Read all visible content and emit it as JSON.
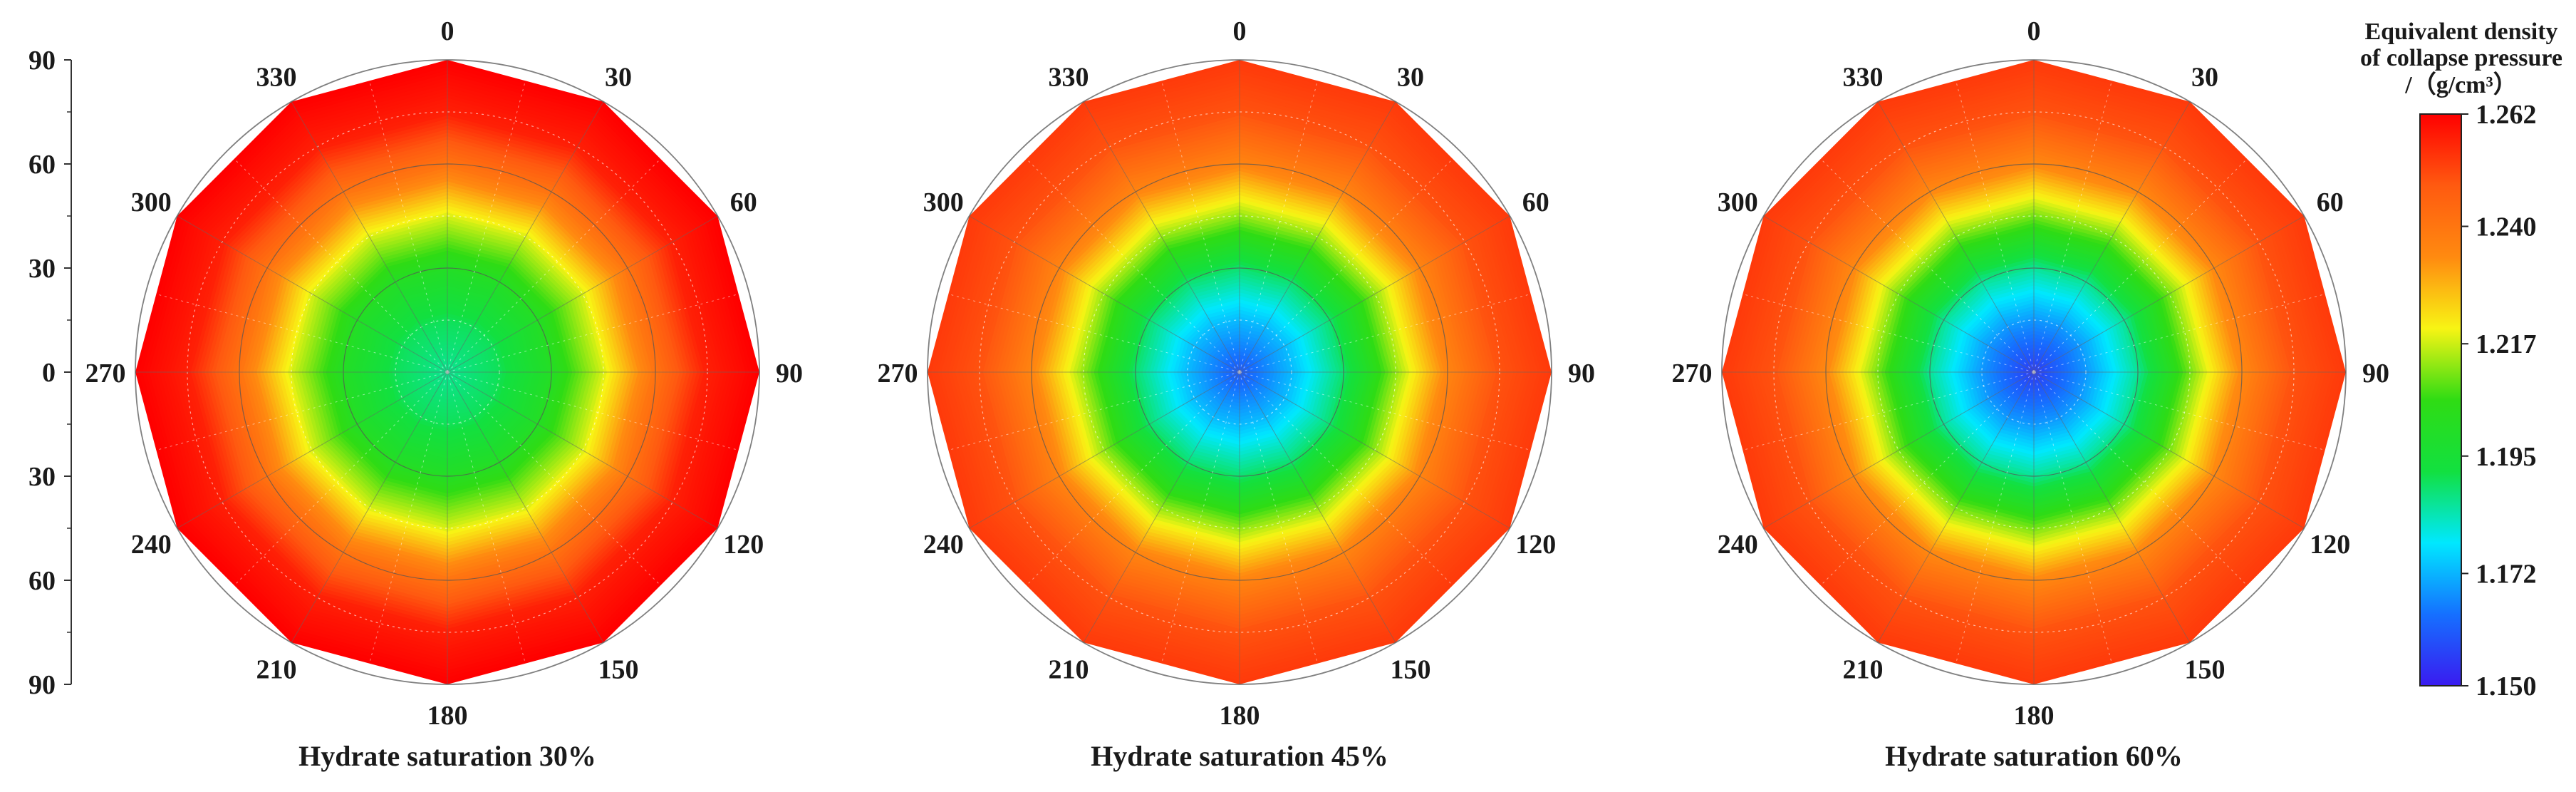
{
  "chart_data": [
    {
      "type": "heatmap",
      "subtype": "polar-contour",
      "title": "Hydrate saturation 30%",
      "angle_ticks": [
        "0",
        "30",
        "60",
        "90",
        "120",
        "150",
        "180",
        "210",
        "240",
        "270",
        "300",
        "330"
      ],
      "radial_axis_ticks": [
        "90",
        "60",
        "30",
        "0",
        "30",
        "60",
        "90"
      ],
      "angle_step_deg": 30,
      "rings": [
        30,
        60,
        90
      ],
      "value_range": [
        1.186,
        1.262
      ],
      "radial_profile": [
        {
          "r": 0,
          "v": 1.186
        },
        {
          "r": 15,
          "v": 1.19
        },
        {
          "r": 30,
          "v": 1.2
        },
        {
          "r": 45,
          "v": 1.217
        },
        {
          "r": 60,
          "v": 1.24
        },
        {
          "r": 75,
          "v": 1.257
        },
        {
          "r": 90,
          "v": 1.262
        }
      ]
    },
    {
      "type": "heatmap",
      "subtype": "polar-contour",
      "title": "Hydrate saturation 45%",
      "angle_ticks": [
        "0",
        "30",
        "60",
        "90",
        "120",
        "150",
        "180",
        "210",
        "240",
        "270",
        "300",
        "330"
      ],
      "angle_step_deg": 30,
      "rings": [
        30,
        60,
        90
      ],
      "value_range": [
        1.16,
        1.253
      ],
      "radial_profile": [
        {
          "r": 0,
          "v": 1.16
        },
        {
          "r": 15,
          "v": 1.172
        },
        {
          "r": 30,
          "v": 1.188
        },
        {
          "r": 45,
          "v": 1.212
        },
        {
          "r": 60,
          "v": 1.235
        },
        {
          "r": 75,
          "v": 1.249
        },
        {
          "r": 90,
          "v": 1.253
        }
      ]
    },
    {
      "type": "heatmap",
      "subtype": "polar-contour",
      "title": "Hydrate saturation 60%",
      "angle_ticks": [
        "0",
        "30",
        "60",
        "90",
        "120",
        "150",
        "180",
        "210",
        "240",
        "270",
        "300",
        "330"
      ],
      "angle_step_deg": 30,
      "rings": [
        30,
        60,
        90
      ],
      "value_range": [
        1.155,
        1.253
      ],
      "radial_profile": [
        {
          "r": 0,
          "v": 1.155
        },
        {
          "r": 15,
          "v": 1.168
        },
        {
          "r": 30,
          "v": 1.185
        },
        {
          "r": 45,
          "v": 1.21
        },
        {
          "r": 60,
          "v": 1.234
        },
        {
          "r": 75,
          "v": 1.249
        },
        {
          "r": 90,
          "v": 1.253
        }
      ]
    }
  ],
  "colorbar": {
    "title_lines": [
      "Equivalent density",
      "of collapse pressure",
      "/（g/cm³）"
    ],
    "min": 1.15,
    "max": 1.262,
    "ticks": [
      "1.262",
      "1.240",
      "1.217",
      "1.195",
      "1.172",
      "1.150"
    ],
    "colormap": [
      "#3a1bf0",
      "#1570ff",
      "#00e8ff",
      "#12e040",
      "#2fdc14",
      "#f8f414",
      "#ff8a10",
      "#ff5a10",
      "#ff0000"
    ]
  }
}
